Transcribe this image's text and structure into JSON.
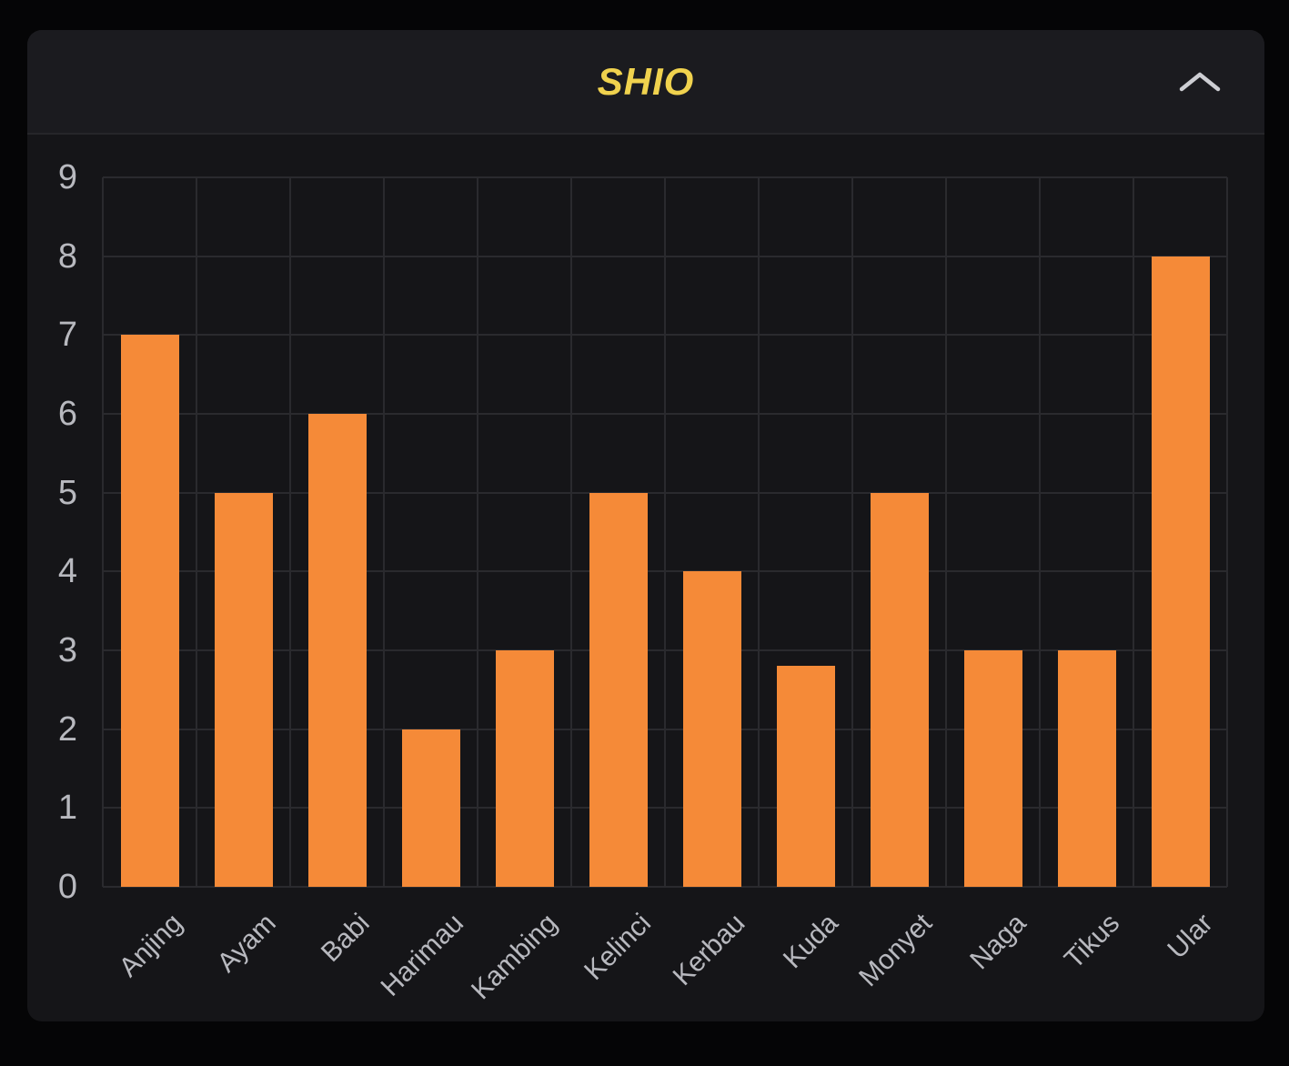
{
  "page": {
    "background": "#050506"
  },
  "panel": {
    "background": "#151518",
    "header": {
      "title": "SHIO",
      "title_color": "#f0d24e",
      "background": "#1b1b1f",
      "divider_color": "#26262a",
      "collapse_icon": "chevron-up-icon",
      "icon_color": "#cdced3"
    }
  },
  "chart_data": {
    "type": "bar",
    "title": "SHIO",
    "categories": [
      "Anjing",
      "Ayam",
      "Babi",
      "Harimau",
      "Kambing",
      "Kelinci",
      "Kerbau",
      "Kuda",
      "Monyet",
      "Naga",
      "Tikus",
      "Ular"
    ],
    "values": [
      7,
      5,
      6,
      2,
      3,
      5,
      4,
      2.8,
      5,
      3,
      3,
      8
    ],
    "xlabel": "",
    "ylabel": "",
    "ylim": [
      0,
      9
    ],
    "yticks": [
      0,
      1,
      2,
      3,
      4,
      5,
      6,
      7,
      8,
      9
    ],
    "grid": true,
    "legend": false,
    "bar_color": "#f58a38",
    "grid_color": "#2a2a2e",
    "axis_label_color": "#b8b9bf",
    "plot_background": "#151518"
  }
}
